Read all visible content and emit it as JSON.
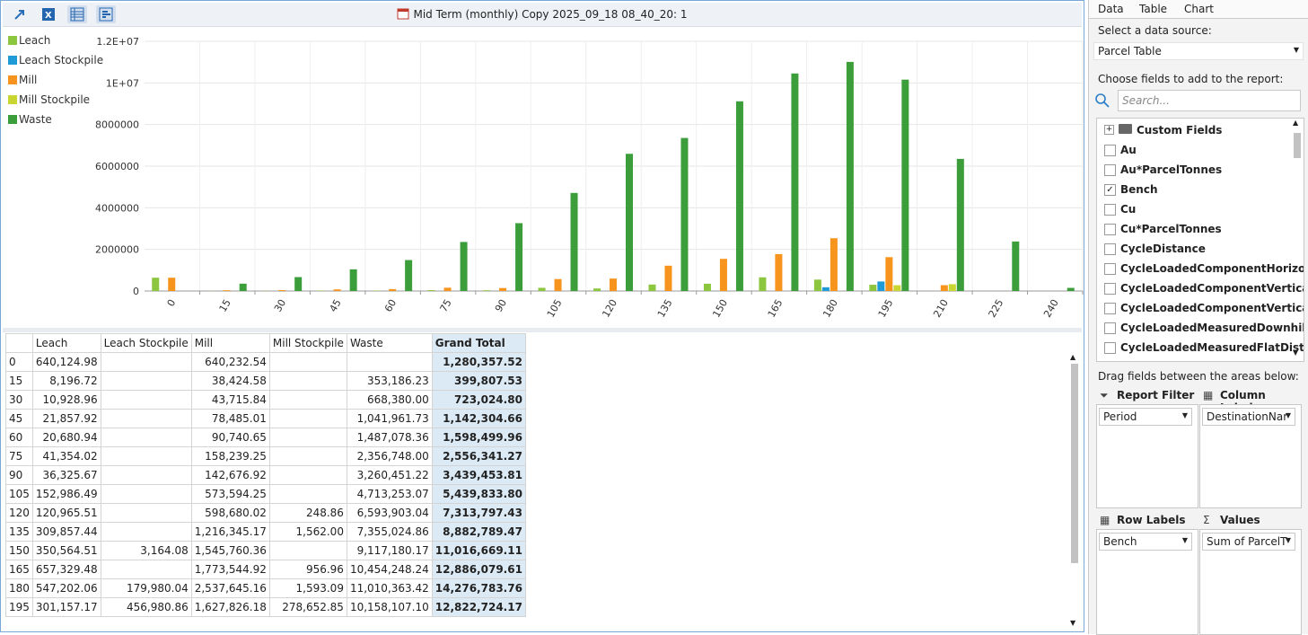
{
  "toolbar": {
    "title": "Mid Term (monthly) Copy 2025_09_18 08_40_20: 1"
  },
  "chart_data": {
    "type": "bar",
    "categories": [
      "0",
      "15",
      "30",
      "45",
      "60",
      "75",
      "90",
      "105",
      "120",
      "135",
      "150",
      "165",
      "180",
      "195",
      "210",
      "225",
      "240"
    ],
    "series": [
      {
        "name": "Leach",
        "color": "#8cc63e",
        "values": [
          640124.98,
          8196.72,
          10928.96,
          21857.92,
          20680.94,
          41354.02,
          36325.67,
          152986.49,
          120965.51,
          309857.44,
          350564.51,
          657329.48,
          547202.06,
          301157.17,
          null,
          null,
          null
        ]
      },
      {
        "name": "Leach Stockpile",
        "color": "#1e9ad6",
        "values": [
          null,
          null,
          null,
          null,
          null,
          null,
          null,
          null,
          null,
          null,
          3164.08,
          null,
          179980.04,
          456980.86,
          null,
          null,
          null
        ]
      },
      {
        "name": "Mill",
        "color": "#f7941d",
        "values": [
          640232.54,
          38424.58,
          43715.84,
          78485.01,
          90740.65,
          158239.25,
          142676.92,
          573594.25,
          598680.02,
          1216345.17,
          1545760.36,
          1773544.92,
          2537645.16,
          1627826.18,
          280000,
          null,
          null
        ]
      },
      {
        "name": "Mill Stockpile",
        "color": "#c9d530",
        "values": [
          null,
          null,
          null,
          null,
          null,
          null,
          null,
          null,
          248.86,
          1562.0,
          null,
          956.96,
          1593.09,
          278652.85,
          330000,
          null,
          null
        ]
      },
      {
        "name": "Waste",
        "color": "#3b9e3a",
        "values": [
          null,
          353186.23,
          668380.0,
          1041961.73,
          1487078.36,
          2356748.0,
          3260451.22,
          4713253.07,
          6593903.04,
          7355024.86,
          9117180.17,
          10454248.24,
          11010363.42,
          10158107.1,
          6350000,
          2380000,
          150000
        ]
      }
    ],
    "ylim": [
      0,
      12000000
    ],
    "yticks": [
      0,
      2000000,
      4000000,
      6000000,
      8000000,
      {
        "value": 10000000,
        "label": "1E+07"
      },
      {
        "value": 12000000,
        "label": "1.2E+07"
      }
    ],
    "grid": true,
    "legend": "top-left"
  },
  "table": {
    "header": [
      "Leach",
      "Leach Stockpile",
      "Mill",
      "Mill Stockpile",
      "Waste",
      "Grand Total"
    ],
    "rows": [
      [
        "0",
        "640,124.98",
        null,
        "640,232.54",
        null,
        null,
        "1,280,357.52"
      ],
      [
        "15",
        "8,196.72",
        null,
        "38,424.58",
        null,
        "353,186.23",
        "399,807.53"
      ],
      [
        "30",
        "10,928.96",
        null,
        "43,715.84",
        null,
        "668,380.00",
        "723,024.80"
      ],
      [
        "45",
        "21,857.92",
        null,
        "78,485.01",
        null,
        "1,041,961.73",
        "1,142,304.66"
      ],
      [
        "60",
        "20,680.94",
        null,
        "90,740.65",
        null,
        "1,487,078.36",
        "1,598,499.96"
      ],
      [
        "75",
        "41,354.02",
        null,
        "158,239.25",
        null,
        "2,356,748.00",
        "2,556,341.27"
      ],
      [
        "90",
        "36,325.67",
        null,
        "142,676.92",
        null,
        "3,260,451.22",
        "3,439,453.81"
      ],
      [
        "105",
        "152,986.49",
        null,
        "573,594.25",
        null,
        "4,713,253.07",
        "5,439,833.80"
      ],
      [
        "120",
        "120,965.51",
        null,
        "598,680.02",
        "248.86",
        "6,593,903.04",
        "7,313,797.43"
      ],
      [
        "135",
        "309,857.44",
        null,
        "1,216,345.17",
        "1,562.00",
        "7,355,024.86",
        "8,882,789.47"
      ],
      [
        "150",
        "350,564.51",
        "3,164.08",
        "1,545,760.36",
        null,
        "9,117,180.17",
        "11,016,669.11"
      ],
      [
        "165",
        "657,329.48",
        null,
        "1,773,544.92",
        "956.96",
        "10,454,248.24",
        "12,886,079.61"
      ],
      [
        "180",
        "547,202.06",
        "179,980.04",
        "2,537,645.16",
        "1,593.09",
        "11,010,363.42",
        "14,276,783.76"
      ],
      [
        "195",
        "301,157.17",
        "456,980.86",
        "1,627,826.18",
        "278,652.85",
        "10,158,107.10",
        "12,822,724.17"
      ]
    ]
  },
  "panel": {
    "tabs": [
      "Data",
      "Table",
      "Chart"
    ],
    "source_label": "Select a data source:",
    "source": "Parcel Table",
    "fields_label": "Choose fields to add to the report:",
    "search_placeholder": "Search...",
    "fields": [
      {
        "label": "Custom Fields",
        "folder": true
      },
      {
        "label": "Au",
        "checked": false
      },
      {
        "label": "Au*ParcelTonnes",
        "checked": false
      },
      {
        "label": "Bench",
        "checked": true
      },
      {
        "label": "Cu",
        "checked": false
      },
      {
        "label": "Cu*ParcelTonnes",
        "checked": false
      },
      {
        "label": "CycleDistance",
        "checked": false
      },
      {
        "label": "CycleLoadedComponentHorizont",
        "checked": false
      },
      {
        "label": "CycleLoadedComponentVerticalD",
        "checked": false
      },
      {
        "label": "CycleLoadedComponentVerticalU",
        "checked": false
      },
      {
        "label": "CycleLoadedMeasuredDownhillD",
        "checked": false
      },
      {
        "label": "CycleLoadedMeasuredFlatDistan",
        "checked": false
      }
    ],
    "drag_label": "Drag fields between the areas below:",
    "areas": [
      {
        "title": "Report Filter",
        "value": "Period"
      },
      {
        "title": "Column Labels",
        "value": "DestinationNar"
      },
      {
        "title": "Row Labels",
        "value": "Bench"
      },
      {
        "title": "Values",
        "value": "Sum of ParcelT"
      }
    ]
  }
}
